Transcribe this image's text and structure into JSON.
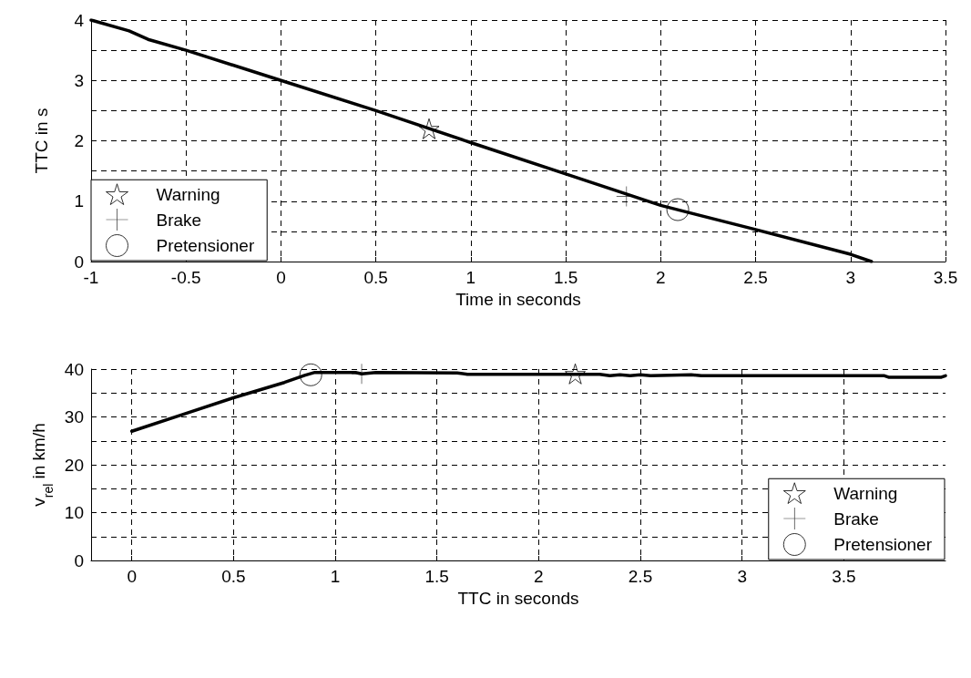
{
  "chart_data": [
    {
      "type": "line",
      "xlabel": "Time in seconds",
      "ylabel": "TTC in s",
      "xlim": [
        -1,
        3.5
      ],
      "xticks": [
        -1,
        -0.5,
        0,
        0.5,
        1,
        1.5,
        2,
        2.5,
        3,
        3.5
      ],
      "ylim": [
        0,
        4
      ],
      "yticks": [
        0,
        {
          "value": 0.5,
          "label": null
        },
        1,
        {
          "value": 1.5,
          "label": null
        },
        2,
        {
          "value": 2.5,
          "label": null
        },
        3,
        {
          "value": 3.5,
          "label": null
        },
        4
      ],
      "grid": true,
      "legend": "bottom left",
      "series": [
        {
          "color": "#000000",
          "marker": "none",
          "x": [
            -1,
            -0.8,
            -0.7,
            -0.5,
            0,
            0.5,
            1,
            1.5,
            2,
            2.5,
            3,
            3.11
          ],
          "values": [
            4,
            3.82,
            3.68,
            3.5,
            3.0,
            2.5,
            1.97,
            1.45,
            0.93,
            0.53,
            0.12,
            0
          ]
        },
        {
          "type": "scatter",
          "name": "Warning",
          "color": "#000000",
          "marker": "star",
          "x": [
            0.78
          ],
          "values": [
            2.2
          ]
        },
        {
          "type": "scatter",
          "name": "Brake",
          "color": "#000000",
          "marker": "cross",
          "x": [
            1.82
          ],
          "values": [
            1.08
          ]
        },
        {
          "type": "scatter",
          "name": "Pretensioner",
          "color": "#000000",
          "marker": "circle",
          "x": [
            2.09
          ],
          "values": [
            0.86
          ]
        }
      ]
    },
    {
      "type": "line",
      "xlabel": "TTC in seconds",
      "ylabel": "v$_{rel}$ in km/h",
      "xlim": [
        -0.2,
        4
      ],
      "xticks": [
        0,
        0.5,
        1,
        1.5,
        2,
        2.5,
        3,
        3.5
      ],
      "ylim": [
        0,
        40
      ],
      "yticks": [
        0,
        {
          "value": 5,
          "label": null
        },
        10,
        {
          "value": 15,
          "label": null
        },
        20,
        {
          "value": 25,
          "label": null
        },
        30,
        {
          "value": 35,
          "label": null
        },
        40
      ],
      "grid": true,
      "legend": "bottom right",
      "series": [
        {
          "color": "#000000",
          "marker": "none",
          "x": [
            0,
            0.25,
            0.5,
            0.75,
            0.85,
            0.9,
            1.1,
            1.13,
            1.2,
            1.6,
            1.65,
            2.3,
            2.35,
            2.4,
            2.45,
            2.5,
            2.55,
            2.75,
            2.8,
            3.7,
            3.72,
            3.98,
            4.0
          ],
          "values": [
            27,
            30.5,
            34,
            37.2,
            38.7,
            39.3,
            39.3,
            39,
            39.3,
            39.2,
            38.9,
            38.9,
            38.6,
            38.8,
            38.6,
            38.8,
            38.6,
            38.8,
            38.6,
            38.6,
            38.3,
            38.3,
            38.6
          ]
        },
        {
          "type": "scatter",
          "name": "Warning",
          "color": "#000000",
          "marker": "star",
          "x": [
            2.18
          ],
          "values": [
            39
          ]
        },
        {
          "type": "scatter",
          "name": "Brake",
          "color": "#000000",
          "marker": "cross",
          "x": [
            1.13
          ],
          "values": [
            39
          ]
        },
        {
          "type": "scatter",
          "name": "Pretensioner",
          "color": "#000000",
          "marker": "circle",
          "x": [
            0.88
          ],
          "values": [
            38.8
          ]
        }
      ]
    }
  ]
}
